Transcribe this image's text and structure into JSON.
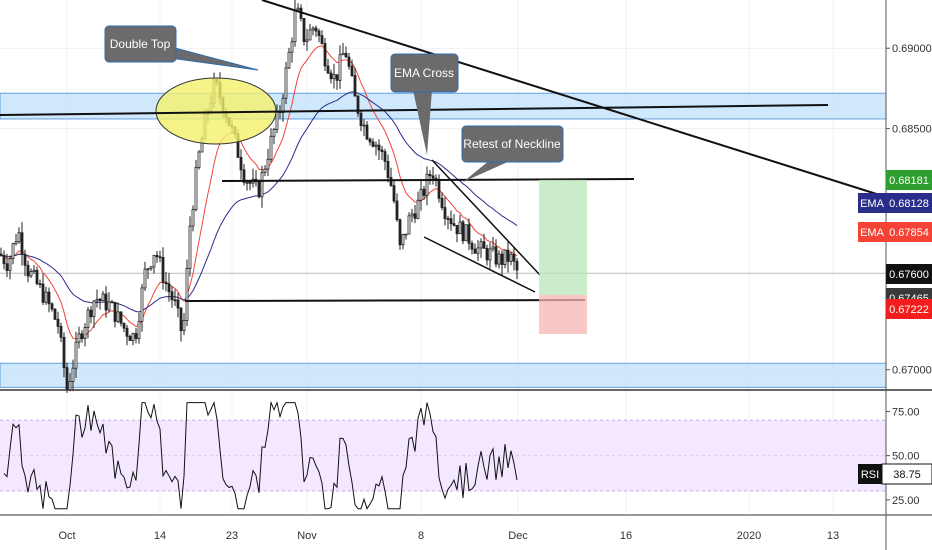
{
  "chart_data": {
    "type": "candlestick",
    "title": "",
    "price_axis": {
      "ticks": [
        "0.69000",
        "0.68500",
        "0.67000"
      ],
      "ylim": [
        0.6688,
        0.693
      ]
    },
    "rsi_axis": {
      "ticks": [
        "75.00",
        "50.00",
        "25.00"
      ],
      "ylim": [
        17,
        86
      ]
    },
    "time_axis": {
      "ticks": [
        "Oct",
        "14",
        "23",
        "Nov",
        "8",
        "Dec",
        "16",
        "2020",
        "13"
      ]
    },
    "annotations": [
      "Double Top",
      "EMA Cross",
      "Retest of Neckline"
    ],
    "labels": {
      "last_price": "0.67600",
      "ema_blue": {
        "name": "EMA",
        "value": "0.68128"
      },
      "ema_red": {
        "name": "EMA",
        "value": "0.67854"
      },
      "target": "0.68181",
      "entry": "0.67465",
      "stop": "0.67222",
      "rsi": {
        "name": "RSI",
        "value": "38.75"
      }
    },
    "levels": {
      "resistance_zone": [
        0.6856,
        0.6872
      ],
      "support_zone": [
        0.6689,
        0.6704
      ],
      "neckline": 0.6819,
      "lower_neckline": 0.6746,
      "target": 0.68181,
      "entry": 0.67465,
      "stop": 0.67222,
      "last": 0.676,
      "rsi_band": [
        30,
        70
      ]
    },
    "colors": {
      "ema_blue": "#2a2d8a",
      "ema_red": "#f44336",
      "target": "#2e9e2e",
      "stop": "#f21d1d",
      "zone": "#bbdefb",
      "rsi_band": "#f3e8ff"
    }
  }
}
